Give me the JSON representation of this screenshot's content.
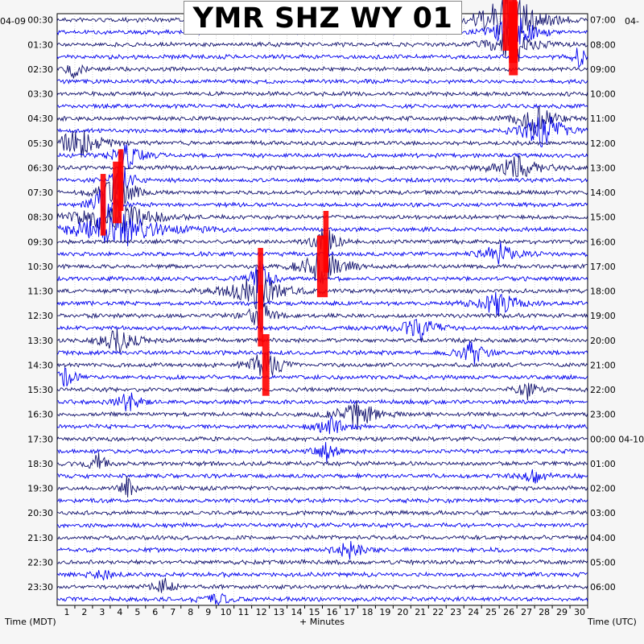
{
  "title": "YMR SHZ WY 01",
  "left_header": "04-09",
  "right_header": "04-",
  "footer_left": "Time (MDT)",
  "footer_center": "+ Minutes",
  "footer_right": "Time (UTC)",
  "colors": {
    "background": "#f6f6f6",
    "plot_bg": "#ffffff",
    "trace_dark": "#12126e",
    "trace_blue": "#0000ee",
    "clipped": "#ff0000",
    "grid": "#b0b0b0"
  },
  "chart_data": {
    "type": "helicorder",
    "station": "YMR SHZ WY 01",
    "x_axis_label": "+ Minutes",
    "x_range": [
      0,
      30
    ],
    "x_ticks": [
      "1",
      "2",
      "3",
      "4",
      "5",
      "6",
      "7",
      "8",
      "9",
      "10",
      "11",
      "12",
      "13",
      "14",
      "15",
      "16",
      "17",
      "18",
      "19",
      "20",
      "21",
      "22",
      "23",
      "24",
      "25",
      "26",
      "27",
      "28",
      "29",
      "30"
    ],
    "rows_per_hour": 2,
    "row_count": 48,
    "left_time_labels": [
      "00:30",
      "01:30",
      "02:30",
      "03:30",
      "04:30",
      "05:30",
      "06:30",
      "07:30",
      "08:30",
      "09:30",
      "10:30",
      "11:30",
      "12:30",
      "13:30",
      "14:30",
      "15:30",
      "16:30",
      "17:30",
      "18:30",
      "19:30",
      "20:30",
      "21:30",
      "22:30",
      "23:30"
    ],
    "right_time_labels": [
      "07:00",
      "08:00",
      "09:00",
      "10:00",
      "11:00",
      "12:00",
      "13:00",
      "14:00",
      "15:00",
      "16:00",
      "17:00",
      "18:00",
      "19:00",
      "20:00",
      "21:00",
      "22:00",
      "23:00",
      "00:00 04-10",
      "01:00",
      "02:00",
      "03:00",
      "04:00",
      "05:00",
      "06:00"
    ],
    "trace_colors": [
      "#12126e",
      "#0000ee"
    ],
    "events": [
      {
        "row": 0,
        "minute": 25.6,
        "amplitude": 5,
        "width": 1.6,
        "clipped": true
      },
      {
        "row": 1,
        "minute": 25.8,
        "amplitude": 4,
        "width": 1.0,
        "clipped": true
      },
      {
        "row": 2,
        "minute": 25.8,
        "amplitude": 4,
        "width": 1.0,
        "clipped": true
      },
      {
        "row": 3,
        "minute": 29.5,
        "amplitude": 2,
        "width": 0.4,
        "clipped": false
      },
      {
        "row": 4,
        "minute": 1.0,
        "amplitude": 1.5,
        "width": 0.4,
        "clipped": false
      },
      {
        "row": 8,
        "minute": 27.0,
        "amplitude": 2.5,
        "width": 1.0,
        "clipped": false
      },
      {
        "row": 9,
        "minute": 27.5,
        "amplitude": 3,
        "width": 1.2,
        "clipped": false
      },
      {
        "row": 10,
        "minute": 1.2,
        "amplitude": 2.5,
        "width": 1.2,
        "clipped": false
      },
      {
        "row": 11,
        "minute": 4.0,
        "amplitude": 2,
        "width": 1.0,
        "clipped": false
      },
      {
        "row": 12,
        "minute": 26.0,
        "amplitude": 2,
        "width": 1.2,
        "clipped": false
      },
      {
        "row": 13,
        "minute": 3.6,
        "amplitude": 3,
        "width": 0.6,
        "clipped": true
      },
      {
        "row": 14,
        "minute": 3.4,
        "amplitude": 3,
        "width": 1.0,
        "clipped": true
      },
      {
        "row": 15,
        "minute": 2.6,
        "amplitude": 4,
        "width": 0.6,
        "clipped": true
      },
      {
        "row": 16,
        "minute": 3.2,
        "amplitude": 3,
        "width": 2.0,
        "clipped": false
      },
      {
        "row": 17,
        "minute": 3.5,
        "amplitude": 3,
        "width": 2.5,
        "clipped": false
      },
      {
        "row": 18,
        "minute": 15.2,
        "amplitude": 3,
        "width": 0.6,
        "clipped": true
      },
      {
        "row": 19,
        "minute": 25.0,
        "amplitude": 2,
        "width": 1.0,
        "clipped": false
      },
      {
        "row": 20,
        "minute": 15.0,
        "amplitude": 3,
        "width": 1.2,
        "clipped": true
      },
      {
        "row": 21,
        "minute": 11.5,
        "amplitude": 3,
        "width": 0.6,
        "clipped": true
      },
      {
        "row": 22,
        "minute": 11.3,
        "amplitude": 3,
        "width": 1.5,
        "clipped": false
      },
      {
        "row": 23,
        "minute": 25.0,
        "amplitude": 2.5,
        "width": 1.0,
        "clipped": false
      },
      {
        "row": 24,
        "minute": 11.5,
        "amplitude": 3,
        "width": 0.6,
        "clipped": true
      },
      {
        "row": 25,
        "minute": 20.5,
        "amplitude": 2,
        "width": 1.0,
        "clipped": false
      },
      {
        "row": 26,
        "minute": 3.5,
        "amplitude": 2,
        "width": 1.0,
        "clipped": false
      },
      {
        "row": 27,
        "minute": 23.5,
        "amplitude": 2,
        "width": 0.8,
        "clipped": false
      },
      {
        "row": 28,
        "minute": 11.8,
        "amplitude": 3,
        "width": 0.8,
        "clipped": true
      },
      {
        "row": 29,
        "minute": 0.5,
        "amplitude": 1.5,
        "width": 0.6,
        "clipped": false
      },
      {
        "row": 30,
        "minute": 26.6,
        "amplitude": 1.5,
        "width": 0.6,
        "clipped": false
      },
      {
        "row": 31,
        "minute": 4.0,
        "amplitude": 2,
        "width": 0.6,
        "clipped": false
      },
      {
        "row": 32,
        "minute": 17.0,
        "amplitude": 2,
        "width": 1.2,
        "clipped": false
      },
      {
        "row": 33,
        "minute": 15.5,
        "amplitude": 1.5,
        "width": 0.8,
        "clipped": false
      },
      {
        "row": 35,
        "minute": 15.2,
        "amplitude": 1.5,
        "width": 0.6,
        "clipped": false
      },
      {
        "row": 36,
        "minute": 2.3,
        "amplitude": 1.5,
        "width": 0.6,
        "clipped": false
      },
      {
        "row": 37,
        "minute": 27.0,
        "amplitude": 1.5,
        "width": 0.6,
        "clipped": false
      },
      {
        "row": 38,
        "minute": 4.0,
        "amplitude": 2,
        "width": 0.4,
        "clipped": false
      },
      {
        "row": 43,
        "minute": 16.5,
        "amplitude": 1.5,
        "width": 0.8,
        "clipped": false
      },
      {
        "row": 45,
        "minute": 2.5,
        "amplitude": 1,
        "width": 0.6,
        "clipped": false
      },
      {
        "row": 46,
        "minute": 6.0,
        "amplitude": 1.5,
        "width": 0.6,
        "clipped": false
      },
      {
        "row": 47,
        "minute": 9.0,
        "amplitude": 1,
        "width": 0.8,
        "clipped": false
      }
    ]
  }
}
